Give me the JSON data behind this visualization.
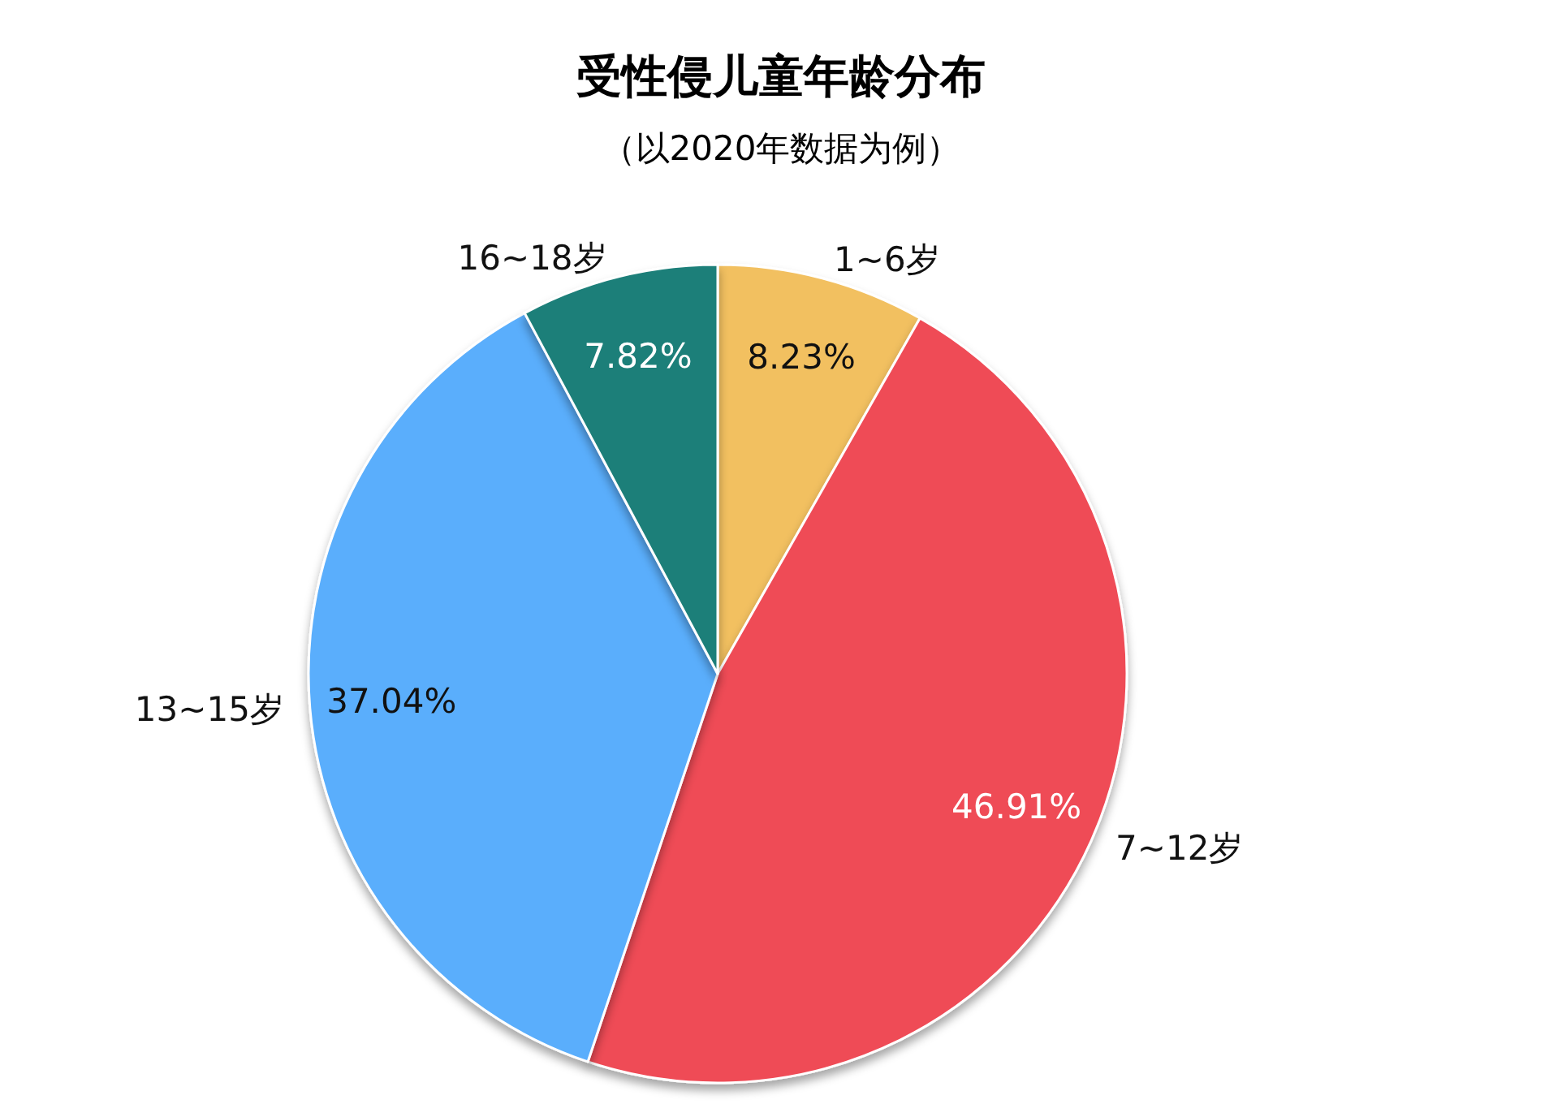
{
  "chart_data": {
    "type": "pie",
    "title": "受性侵儿童年龄分布",
    "subtitle": "（以2020年数据为例）",
    "categories": [
      "1~6岁",
      "7~12岁",
      "13~15岁",
      "16~18岁"
    ],
    "values": [
      8.23,
      46.91,
      37.04,
      7.82
    ],
    "value_labels": [
      "8.23%",
      "46.91%",
      "37.04%",
      "7.82%"
    ],
    "colors": [
      "#f2c061",
      "#ef4b57",
      "#5aaefc",
      "#1e7f79"
    ],
    "legend": false
  }
}
